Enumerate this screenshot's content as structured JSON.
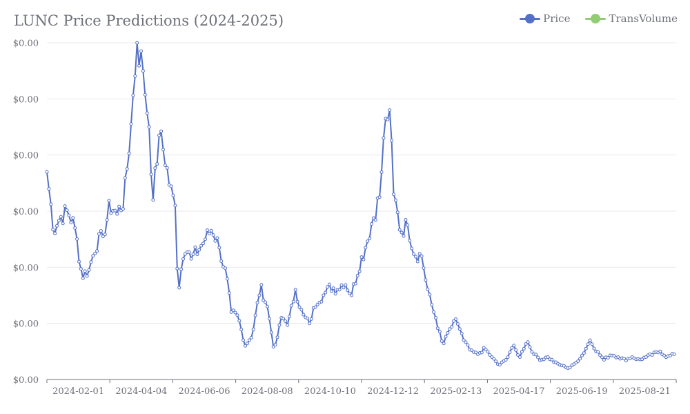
{
  "chart_data": {
    "type": "line",
    "title": "LUNC Price Predictions (2024-2025)",
    "xlabel": "",
    "ylabel": "",
    "x_tick_labels": [
      "2024-02-01",
      "2024-04-04",
      "2024-06-06",
      "2024-08-08",
      "2024-10-10",
      "2024-12-12",
      "2025-02-13",
      "2025-04-17",
      "2025-06-19",
      "2025-08-21"
    ],
    "y_tick_labels": [
      "$0.00",
      "$0.00",
      "$0.00",
      "$0.00",
      "$0.00",
      "$0.00",
      "$0.00"
    ],
    "x_range": [
      "2024-01-01",
      "2025-09-20"
    ],
    "ylim": [
      5e-05,
      0.00017
    ],
    "grid": true,
    "legend_position": "top-right",
    "series": [
      {
        "name": "Price",
        "color": "#5470c6",
        "points": [
          [
            "2024-01-01",
            0.000124
          ],
          [
            "2024-01-08",
            0.000103
          ],
          [
            "2024-01-15",
            0.000108
          ],
          [
            "2024-01-22",
            0.00011
          ],
          [
            "2024-01-29",
            0.000104
          ],
          [
            "2024-02-05",
            8.7e-05
          ],
          [
            "2024-02-12",
            8.9e-05
          ],
          [
            "2024-02-19",
            9.8e-05
          ],
          [
            "2024-02-26",
            0.000101
          ],
          [
            "2024-03-04",
            0.000112
          ],
          [
            "2024-03-11",
            0.000109
          ],
          [
            "2024-03-18",
            0.000114
          ],
          [
            "2024-03-25",
            0.000141
          ],
          [
            "2024-03-31",
            0.00017
          ],
          [
            "2024-04-06",
            0.00016
          ],
          [
            "2024-04-12",
            0.00014
          ],
          [
            "2024-04-16",
            0.000114
          ],
          [
            "2024-04-22",
            0.000137
          ],
          [
            "2024-04-27",
            0.000131
          ],
          [
            "2024-05-03",
            0.000118
          ],
          [
            "2024-05-08",
            0.000112
          ],
          [
            "2024-05-11",
            8.1e-05
          ],
          [
            "2024-05-17",
            9.8e-05
          ],
          [
            "2024-05-24",
            9.3e-05
          ],
          [
            "2024-05-31",
            9.6e-05
          ],
          [
            "2024-06-07",
            0.0001
          ],
          [
            "2024-06-14",
            0.000104
          ],
          [
            "2024-06-21",
            9.7e-05
          ],
          [
            "2024-06-28",
            8.7e-05
          ],
          [
            "2024-07-03",
            7.4e-05
          ],
          [
            "2024-07-10",
            7.2e-05
          ],
          [
            "2024-07-17",
            6.2e-05
          ],
          [
            "2024-07-24",
            6.6e-05
          ],
          [
            "2024-08-01",
            8.3e-05
          ],
          [
            "2024-08-08",
            7.6e-05
          ],
          [
            "2024-08-15",
            6e-05
          ],
          [
            "2024-08-22",
            7.2e-05
          ],
          [
            "2024-08-29",
            7e-05
          ],
          [
            "2024-09-05",
            8.2e-05
          ],
          [
            "2024-09-12",
            7.3e-05
          ],
          [
            "2024-09-19",
            7e-05
          ],
          [
            "2024-09-26",
            7.8e-05
          ],
          [
            "2024-10-03",
            8e-05
          ],
          [
            "2024-10-10",
            8.3e-05
          ],
          [
            "2024-10-17",
            8.2e-05
          ],
          [
            "2024-10-24",
            8.5e-05
          ],
          [
            "2024-10-31",
            8e-05
          ],
          [
            "2024-11-07",
            9e-05
          ],
          [
            "2024-11-14",
            9.7e-05
          ],
          [
            "2024-11-21",
            0.000107
          ],
          [
            "2024-11-28",
            0.000115
          ],
          [
            "2024-12-04",
            0.000143
          ],
          [
            "2024-12-08",
            0.000146
          ],
          [
            "2024-12-12",
            0.000116
          ],
          [
            "2024-12-19",
            0.000103
          ],
          [
            "2024-12-26",
            0.000105
          ],
          [
            "2025-01-02",
            9.5e-05
          ],
          [
            "2025-01-09",
            9.4e-05
          ],
          [
            "2025-01-16",
            8e-05
          ],
          [
            "2025-01-23",
            7.2e-05
          ],
          [
            "2025-01-30",
            6.2e-05
          ],
          [
            "2025-02-06",
            6.8e-05
          ],
          [
            "2025-02-13",
            7.1e-05
          ],
          [
            "2025-02-20",
            6.4e-05
          ],
          [
            "2025-02-27",
            6e-05
          ],
          [
            "2025-03-06",
            5.9e-05
          ],
          [
            "2025-03-13",
            6.1e-05
          ],
          [
            "2025-03-20",
            5.8e-05
          ],
          [
            "2025-03-27",
            5.5e-05
          ],
          [
            "2025-04-03",
            5.7e-05
          ],
          [
            "2025-04-10",
            6.2e-05
          ],
          [
            "2025-04-17",
            5.8e-05
          ],
          [
            "2025-04-24",
            6.4e-05
          ],
          [
            "2025-05-01",
            5.9e-05
          ],
          [
            "2025-05-08",
            5.7e-05
          ],
          [
            "2025-05-15",
            5.8e-05
          ],
          [
            "2025-05-22",
            5.6e-05
          ],
          [
            "2025-05-29",
            5.5e-05
          ],
          [
            "2025-06-05",
            5.4e-05
          ],
          [
            "2025-06-12",
            5.6e-05
          ],
          [
            "2025-06-19",
            5.9e-05
          ],
          [
            "2025-06-26",
            6.4e-05
          ],
          [
            "2025-07-03",
            6e-05
          ],
          [
            "2025-07-10",
            5.7e-05
          ],
          [
            "2025-07-17",
            5.9e-05
          ],
          [
            "2025-07-24",
            5.8e-05
          ],
          [
            "2025-07-31",
            5.7e-05
          ],
          [
            "2025-08-07",
            5.8e-05
          ],
          [
            "2025-08-14",
            5.7e-05
          ],
          [
            "2025-08-21",
            5.8e-05
          ],
          [
            "2025-08-28",
            5.9e-05
          ],
          [
            "2025-09-04",
            6e-05
          ],
          [
            "2025-09-11",
            5.8e-05
          ],
          [
            "2025-09-18",
            5.9e-05
          ]
        ]
      },
      {
        "name": "TransVolume",
        "color": "#91cc75",
        "points": []
      }
    ]
  }
}
